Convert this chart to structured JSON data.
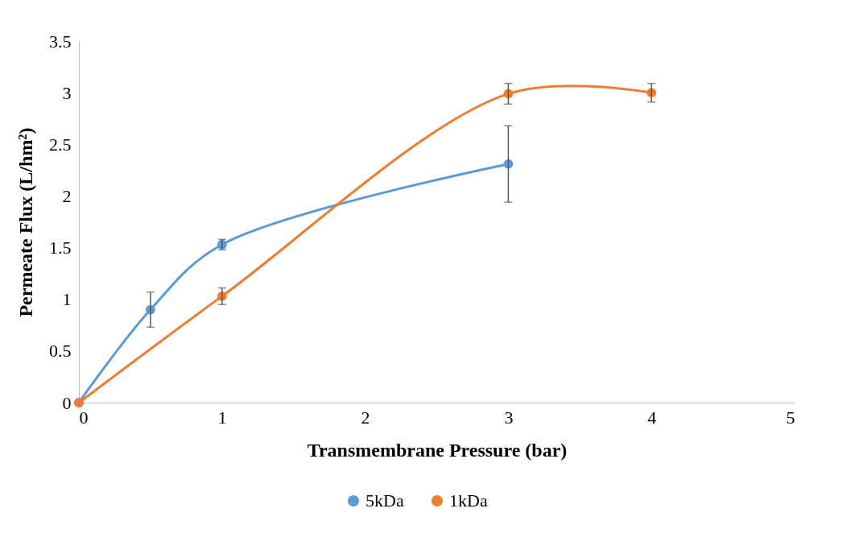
{
  "chart_data": {
    "type": "line",
    "xlabel": "Transmembrane Pressure (bar)",
    "ylabel": "Permeate Flux (L/hm²)",
    "xlim": [
      0,
      5
    ],
    "xticks": [
      0,
      1,
      2,
      3,
      4,
      5
    ],
    "ylim": [
      0,
      3.5
    ],
    "yticks": [
      0,
      0.5,
      1,
      1.5,
      2,
      2.5,
      3,
      3.5
    ],
    "series": [
      {
        "name": "5kDa",
        "color": "#5b9bd5",
        "x": [
          0,
          0.5,
          1,
          3
        ],
        "values": [
          0,
          0.9,
          1.53,
          2.31
        ],
        "errors": [
          null,
          0.17,
          0.05,
          0.37
        ]
      },
      {
        "name": "1kDa",
        "color": "#ed7d31",
        "x": [
          0,
          1,
          3,
          4
        ],
        "values": [
          0,
          1.03,
          2.99,
          3.0
        ],
        "errors": [
          null,
          0.08,
          0.1,
          0.09
        ]
      }
    ],
    "marker": "circle",
    "line_style": "solid",
    "grid": false,
    "legend": "bottom"
  }
}
